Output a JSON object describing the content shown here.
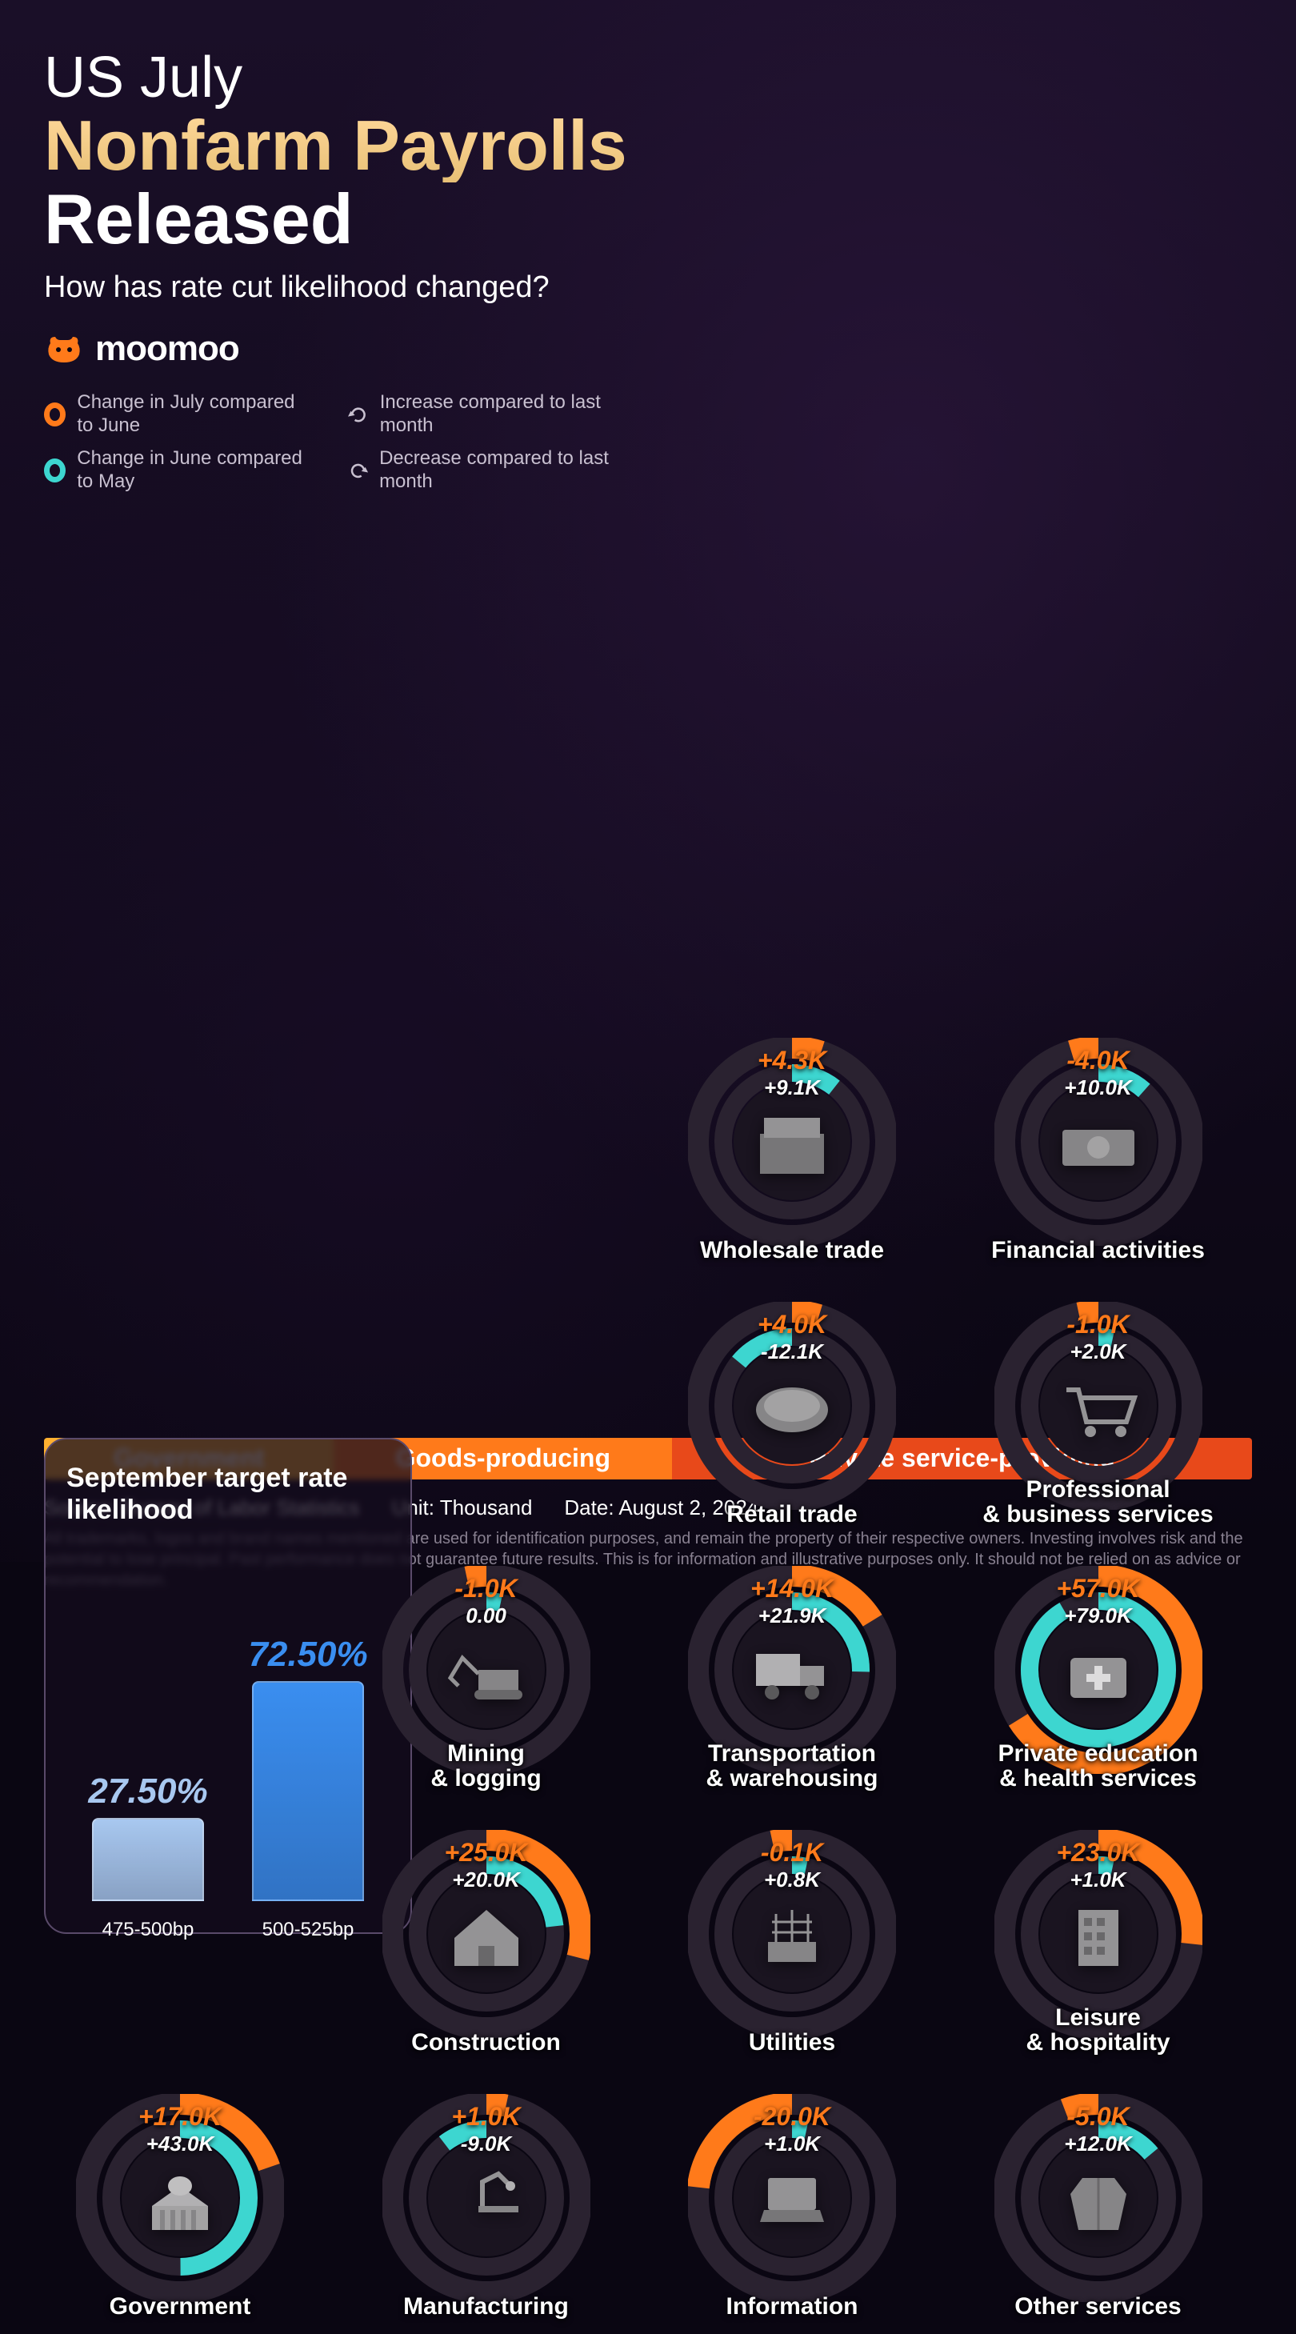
{
  "title": {
    "line1": "US July",
    "line2": "Nonfarm Payrolls",
    "line3": "Released"
  },
  "subtitle": "How has rate cut likelihood changed?",
  "brand": {
    "name": "moomoo",
    "icon_color": "#ff7a1a"
  },
  "colors": {
    "july": "#ff7a1a",
    "june": "#3dd6d0",
    "track": "#2a2230",
    "bg_ring": "#1a1420",
    "bar_low": "#a8c8f0",
    "bar_high": "#3a8ef0",
    "cat_gov": "#ffb030",
    "cat_goods": "#ff7a1a",
    "cat_priv": "#e8491a"
  },
  "legend": {
    "july": "Change in July compared to June",
    "june": "Change in June compared to May",
    "increase": "Increase compared to last month",
    "decrease": "Decrease compared to last month"
  },
  "rate_box": {
    "title": "September target rate likelihood",
    "bars": [
      {
        "label": "475-500bp",
        "pct": "27.50%",
        "value": 27.5,
        "color": "#a8c8f0"
      },
      {
        "label": "500-525bp",
        "pct": "72.50%",
        "value": 72.5,
        "color": "#3a8ef0"
      }
    ],
    "max_bar_height": 380
  },
  "sectors": [
    {
      "slot": 2,
      "name": "Wholesale trade",
      "july": "+4.3K",
      "july_v": 4.3,
      "june": "+9.1K",
      "june_v": 9.1,
      "icon": "box"
    },
    {
      "slot": 3,
      "name": "Financial activities",
      "july": "-4.0K",
      "july_v": -4.0,
      "june": "+10.0K",
      "june_v": 10.0,
      "icon": "money"
    },
    {
      "slot": 6,
      "name": "Retail trade",
      "july": "+4.0K",
      "july_v": 4.0,
      "june": "-12.1K",
      "june_v": -12.1,
      "icon": "plate"
    },
    {
      "slot": 7,
      "name": "Professional & business services",
      "july": "-1.0K",
      "july_v": -1.0,
      "june": "+2.0K",
      "june_v": 2.0,
      "icon": "cart"
    },
    {
      "slot": 9,
      "name": "Mining & logging",
      "july": "-1.0K",
      "july_v": -1.0,
      "june": "0.00",
      "june_v": 0.0,
      "icon": "excavator"
    },
    {
      "slot": 10,
      "name": "Transportation & warehousing",
      "july": "+14.0K",
      "july_v": 14.0,
      "june": "+21.9K",
      "june_v": 21.9,
      "icon": "truck"
    },
    {
      "slot": 11,
      "name": "Private education & health services",
      "july": "+57.0K",
      "july_v": 57.0,
      "june": "+79.0K",
      "june_v": 79.0,
      "icon": "medical"
    },
    {
      "slot": 13,
      "name": "Construction",
      "july": "+25.0K",
      "july_v": 25.0,
      "june": "+20.0K",
      "june_v": 20.0,
      "icon": "house"
    },
    {
      "slot": 14,
      "name": "Utilities",
      "july": "-0.1K",
      "july_v": -0.1,
      "june": "+0.8K",
      "june_v": 0.8,
      "icon": "power"
    },
    {
      "slot": 15,
      "name": "Leisure & hospitality",
      "july": "+23.0K",
      "july_v": 23.0,
      "june": "+1.0K",
      "june_v": 1.0,
      "icon": "building"
    },
    {
      "slot": 16,
      "name": "Government",
      "july": "+17.0K",
      "july_v": 17.0,
      "june": "+43.0K",
      "june_v": 43.0,
      "icon": "capitol"
    },
    {
      "slot": 17,
      "name": "Manufacturing",
      "july": "+1.0K",
      "july_v": 1.0,
      "june": "-9.0K",
      "june_v": -9.0,
      "icon": "robot"
    },
    {
      "slot": 18,
      "name": "Information",
      "july": "-20.0K",
      "july_v": -20.0,
      "june": "+1.0K",
      "june_v": 1.0,
      "icon": "laptop"
    },
    {
      "slot": 19,
      "name": "Other services",
      "july": "-5.0K",
      "july_v": -5.0,
      "june": "+12.0K",
      "june_v": 12.0,
      "icon": "jacket"
    }
  ],
  "donut": {
    "outer_r": 118,
    "outer_w": 28,
    "inner_r": 86,
    "inner_w": 22,
    "max_abs": 79.0,
    "min_deg": 12
  },
  "categories": [
    {
      "label": "Government",
      "width": 24,
      "color": "#ffb030"
    },
    {
      "label": "Goods-producing",
      "width": 28,
      "color": "#ff7a1a"
    },
    {
      "label": "Private service-providing",
      "width": 48,
      "color": "#e8491a"
    }
  ],
  "footer": {
    "source": "Source: Bureau of Labor Statistics",
    "unit": "Unit: Thousand",
    "date": "Date: August 2, 2024",
    "disclaimer": "All trademarks, logos and brand names mentioned are used for identification purposes, and remain the property of their respective owners. Investing involves risk and the potential to lose principal. Past performance does not guarantee future results. This is for information and illustrative purposes only. It should not be relied on as advice or recommendation."
  }
}
